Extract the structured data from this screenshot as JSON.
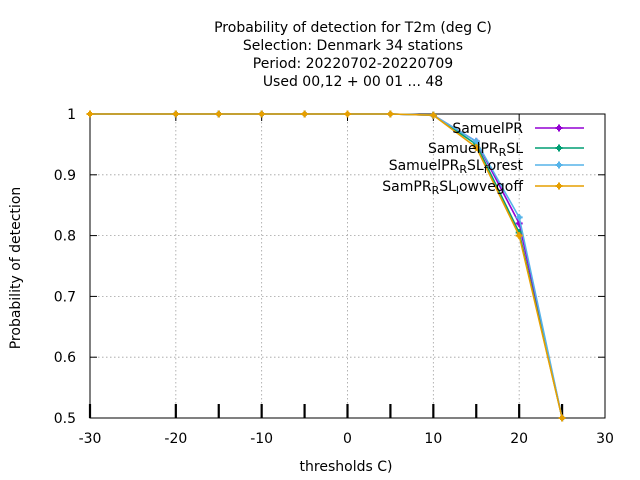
{
  "chart_data": {
    "type": "line",
    "title_lines": [
      "Probability of detection  for T2m (deg C)",
      "Selection: Denmark     34 stations",
      "Period: 20220702-20220709",
      "Used  00,12  + 00 01 ... 48"
    ],
    "xlabel": "thresholds C)",
    "ylabel": "Probability of detection",
    "xlim": [
      -30,
      30
    ],
    "ylim": [
      0.5,
      1.0
    ],
    "xticks": [
      -30,
      -20,
      -10,
      0,
      10,
      20,
      30
    ],
    "yticks": [
      0.5,
      0.6,
      0.7,
      0.8,
      0.9,
      1.0
    ],
    "x_minor_marks": [
      -30,
      -20,
      -15,
      -10,
      -5,
      0,
      5,
      10,
      15,
      20,
      25
    ],
    "grid": true,
    "legend_position": "top-right",
    "series": [
      {
        "legend_parts": [
          [
            "SamuelPR",
            "n"
          ]
        ],
        "color": "#9400d3",
        "x": [
          -30,
          -20,
          -15,
          -10,
          -5,
          0,
          5,
          10,
          15,
          20,
          25
        ],
        "y": [
          1.0,
          1.0,
          1.0,
          1.0,
          1.0,
          1.0,
          1.0,
          0.998,
          0.955,
          0.82,
          0.5
        ]
      },
      {
        "legend_parts": [
          [
            "SamuelPR",
            "n"
          ],
          [
            "R",
            "sub"
          ],
          [
            "SL",
            "n"
          ]
        ],
        "color": "#009e73",
        "x": [
          -30,
          -20,
          -15,
          -10,
          -5,
          0,
          5,
          10,
          15,
          20,
          25
        ],
        "y": [
          1.0,
          1.0,
          1.0,
          1.0,
          1.0,
          1.0,
          1.0,
          0.998,
          0.95,
          0.805,
          0.5
        ]
      },
      {
        "legend_parts": [
          [
            "SamuelPR",
            "n"
          ],
          [
            "R",
            "sub"
          ],
          [
            "SL",
            "n"
          ],
          [
            "f",
            "sub"
          ],
          [
            "orest",
            "n"
          ]
        ],
        "color": "#56b4e9",
        "x": [
          -30,
          -20,
          -15,
          -10,
          -5,
          0,
          5,
          10,
          15,
          20,
          25
        ],
        "y": [
          1.0,
          1.0,
          1.0,
          1.0,
          1.0,
          1.0,
          1.0,
          0.998,
          0.955,
          0.83,
          0.5
        ]
      },
      {
        "legend_parts": [
          [
            "SamPR",
            "n"
          ],
          [
            "R",
            "sub"
          ],
          [
            "SL",
            "n"
          ],
          [
            "l",
            "sub"
          ],
          [
            "owvegoff",
            "n"
          ]
        ],
        "color": "#e69f00",
        "x": [
          -30,
          -20,
          -15,
          -10,
          -5,
          0,
          5,
          10,
          15,
          20,
          25
        ],
        "y": [
          1.0,
          1.0,
          1.0,
          1.0,
          1.0,
          1.0,
          1.0,
          0.998,
          0.945,
          0.8,
          0.5
        ]
      }
    ]
  }
}
